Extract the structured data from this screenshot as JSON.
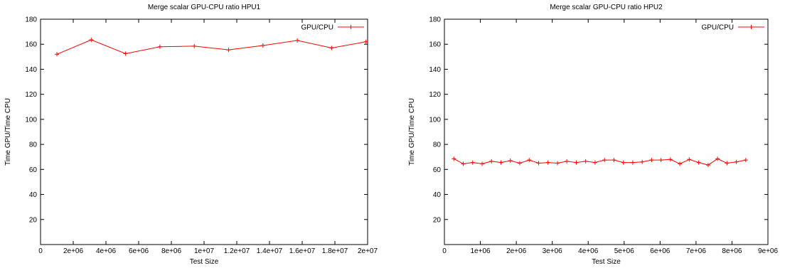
{
  "chart_data": [
    {
      "type": "line",
      "title": "Merge scalar GPU-CPU ratio HPU1",
      "xlabel": "Test Size",
      "ylabel": "Time GPU/Time CPU",
      "xlim": [
        0,
        20000000
      ],
      "ylim": [
        0,
        180
      ],
      "xticks": [
        0,
        2000000,
        4000000,
        6000000,
        8000000,
        10000000,
        12000000,
        14000000,
        16000000,
        18000000,
        20000000
      ],
      "xtick_labels": [
        "0",
        "2e+06",
        "4e+06",
        "6e+06",
        "8e+06",
        "1e+07",
        "1.2e+07",
        "1.4e+07",
        "1.6e+07",
        "1.8e+07",
        "2e+07"
      ],
      "yticks": [
        20,
        40,
        60,
        80,
        100,
        120,
        140,
        160,
        180
      ],
      "ytick_labels": [
        "20",
        "40",
        "60",
        "80",
        "100",
        "120",
        "140",
        "160",
        "180"
      ],
      "grid": false,
      "legend_position": "top-right",
      "color": "#ff0000",
      "series": [
        {
          "name": "GPU/CPU",
          "x": [
            1000000,
            3100000,
            5200000,
            7300000,
            9400000,
            11500000,
            13600000,
            15700000,
            17800000,
            19900000
          ],
          "y": [
            152,
            163.5,
            152.5,
            158,
            158.5,
            155.5,
            159,
            163,
            157,
            162
          ]
        }
      ]
    },
    {
      "type": "line",
      "title": "Merge scalar GPU-CPU ratio HPU2",
      "xlabel": "Test Size",
      "ylabel": "Time GPU/Time CPU",
      "xlim": [
        0,
        9000000
      ],
      "ylim": [
        0,
        180
      ],
      "xticks": [
        0,
        1000000,
        2000000,
        3000000,
        4000000,
        5000000,
        6000000,
        7000000,
        8000000,
        9000000
      ],
      "xtick_labels": [
        "0",
        "1e+06",
        "2e+06",
        "3e+06",
        "4e+06",
        "5e+06",
        "6e+06",
        "7e+06",
        "8e+06",
        "9e+06"
      ],
      "yticks": [
        20,
        40,
        60,
        80,
        100,
        120,
        140,
        160,
        180
      ],
      "ytick_labels": [
        "20",
        "40",
        "60",
        "80",
        "100",
        "120",
        "140",
        "160",
        "180"
      ],
      "grid": false,
      "legend_position": "top-right",
      "color": "#ff0000",
      "series": [
        {
          "name": "GPU/CPU",
          "x": [
            262000,
            524000,
            786000,
            1048000,
            1310000,
            1572000,
            1834000,
            2096000,
            2358000,
            2620000,
            2882000,
            3144000,
            3406000,
            3668000,
            3930000,
            4192000,
            4454000,
            4716000,
            4978000,
            5240000,
            5502000,
            5764000,
            6026000,
            6288000,
            6550000,
            6812000,
            7074000,
            7336000,
            7598000,
            7860000,
            8122000,
            8384000
          ],
          "y": [
            68.5,
            64.5,
            65.5,
            64.5,
            66.5,
            65.5,
            67,
            65,
            67.5,
            65,
            65.5,
            65,
            66.5,
            65.5,
            66.5,
            65.5,
            67.5,
            67.5,
            65.5,
            65.5,
            66,
            67.5,
            67.5,
            68,
            64.5,
            68,
            65.5,
            63.5,
            68.5,
            65,
            66,
            67.5
          ]
        }
      ]
    }
  ]
}
